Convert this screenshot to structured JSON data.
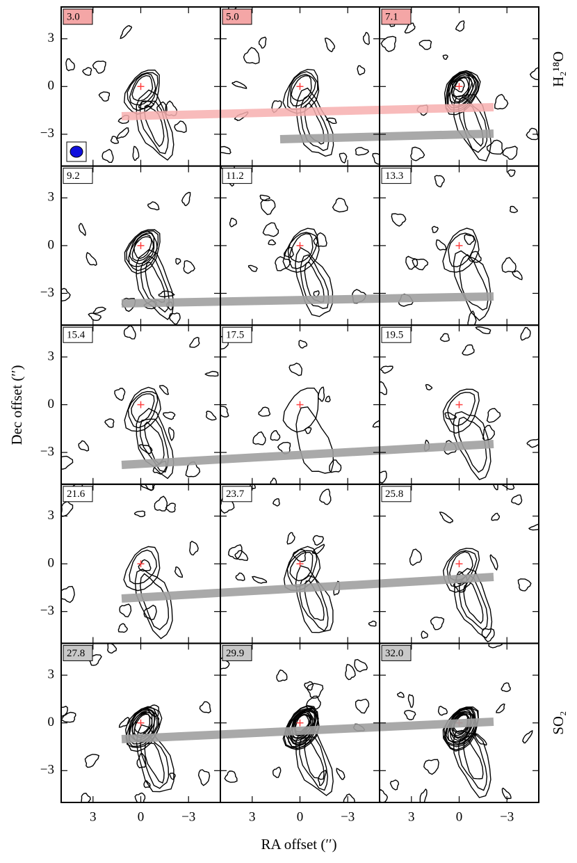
{
  "chart_data": {
    "type": "channel-map",
    "xlabel": "RA offset (′′)",
    "ylabel": "Dec offset (′′)",
    "xlim": [
      5,
      -5
    ],
    "ylim": [
      -5,
      5
    ],
    "xticks": [
      3,
      0,
      {
        "value": -3,
        "label": "−3"
      }
    ],
    "yticks": [
      {
        "value": -3,
        "label": "−3"
      },
      0,
      3
    ],
    "side_labels": [
      "H₂¹⁸O",
      "SO₂"
    ],
    "panels": [
      {
        "label": "3.0",
        "color": "#f4a6a6"
      },
      {
        "label": "5.0",
        "color": "#f4a6a6"
      },
      {
        "label": "7.1",
        "color": "#f4a6a6"
      },
      {
        "label": "9.2"
      },
      {
        "label": "11.2"
      },
      {
        "label": "13.3"
      },
      {
        "label": "15.4"
      },
      {
        "label": "17.5"
      },
      {
        "label": "19.5"
      },
      {
        "label": "21.6"
      },
      {
        "label": "23.7"
      },
      {
        "label": "25.8"
      },
      {
        "label": "27.8",
        "color": "#c8c8c8"
      },
      {
        "label": "29.9",
        "color": "#c8c8c8"
      },
      {
        "label": "32.0",
        "color": "#c8c8c8"
      }
    ]
  }
}
